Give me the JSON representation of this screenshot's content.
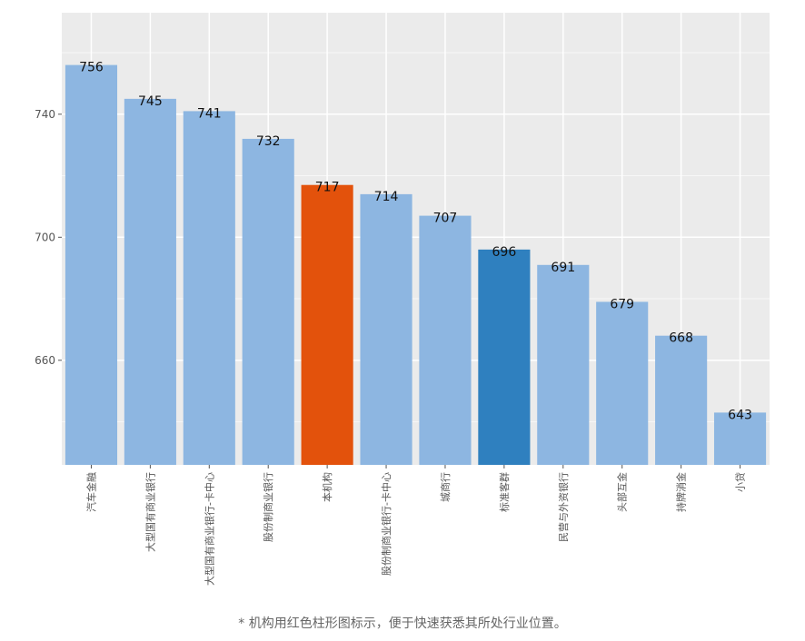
{
  "chart_data": {
    "type": "bar",
    "title": "",
    "xlabel": "",
    "ylabel": "",
    "categories": [
      "汽车金融",
      "大型国有商业银行",
      "大型国有商业银行-卡中心",
      "股份制商业银行",
      "本机构",
      "股份制商业银行-卡中心",
      "城商行",
      "标准客群",
      "民营与外资银行",
      "头部互金",
      "持牌消金",
      "小贷"
    ],
    "values": [
      756,
      745,
      741,
      732,
      717,
      714,
      707,
      696,
      691,
      679,
      668,
      643
    ],
    "bar_colors": [
      "#8db6e1",
      "#8db6e1",
      "#8db6e1",
      "#8db6e1",
      "#e3520c",
      "#8db6e1",
      "#8db6e1",
      "#2f80bf",
      "#8db6e1",
      "#8db6e1",
      "#8db6e1",
      "#8db6e1"
    ],
    "yticks": [
      660,
      700,
      740
    ],
    "ylim": [
      626,
      773
    ],
    "grid": true,
    "panel_color": "#ebebeb"
  },
  "footnote": "* 机构用红色柱形图标示，便于快速获悉其所处行业位置。"
}
